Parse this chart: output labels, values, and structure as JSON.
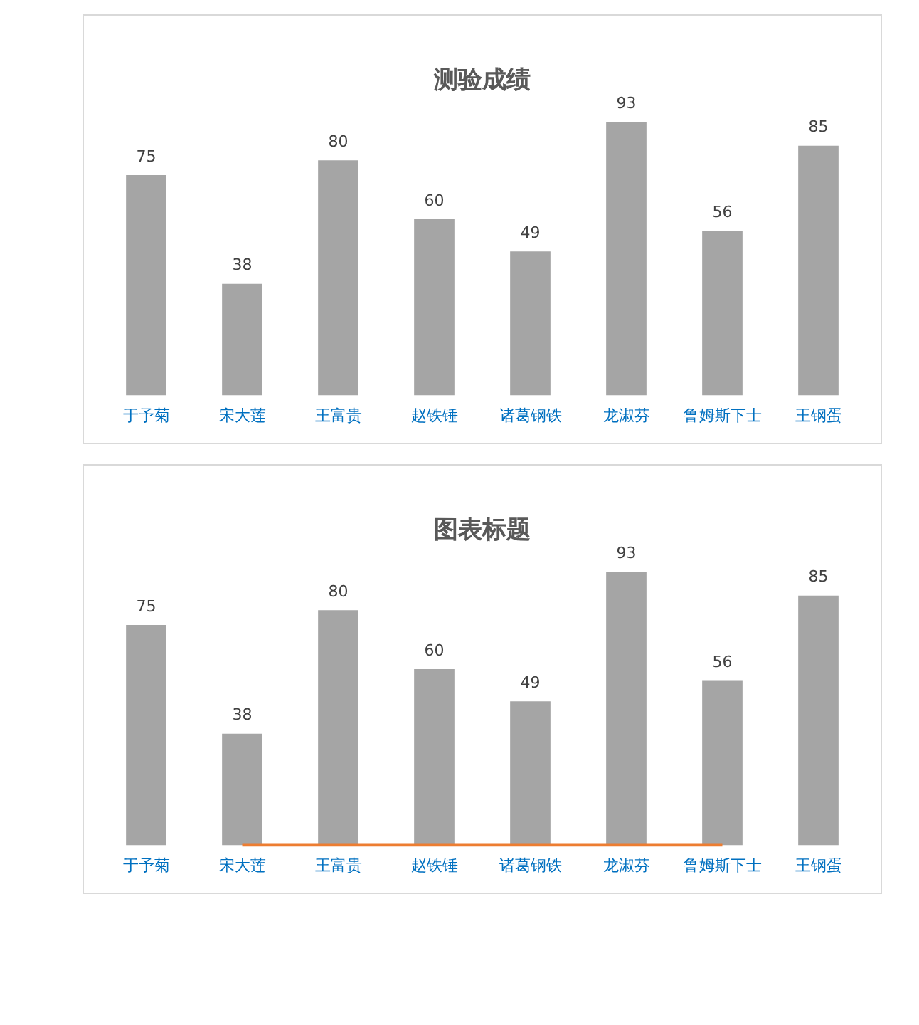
{
  "chart_data": [
    {
      "type": "bar",
      "title": "测验成绩",
      "categories": [
        "于予菊",
        "宋大莲",
        "王富贵",
        "赵铁锤",
        "诸葛钢铁",
        "龙淑芬",
        "鲁姆斯下士",
        "王钢蛋"
      ],
      "series": [
        {
          "color": "#a5a5a5",
          "values": [
            75,
            38,
            80,
            60,
            49,
            93,
            56,
            85
          ],
          "value_labels": [
            "75",
            "38",
            "80",
            "60",
            "49",
            "93",
            "56",
            "85"
          ]
        }
      ],
      "grid": false,
      "legend": false,
      "tick_labels": "x"
    },
    {
      "type": "bar",
      "title": "图表标题",
      "categories": [
        "于予菊",
        "宋大莲",
        "王富贵",
        "赵铁锤",
        "诸葛钢铁",
        "龙淑芬",
        "鲁姆斯下士",
        "王钢蛋"
      ],
      "series": [
        {
          "color": "#a5a5a5",
          "values": [
            75,
            38,
            80,
            60,
            49,
            93,
            56,
            85
          ],
          "value_labels": [
            "75",
            "38",
            "80",
            "60",
            "49",
            "93",
            "56",
            "85"
          ]
        },
        {
          "type": "line",
          "color": "#ed7d31",
          "values": [
            null,
            0,
            0,
            0,
            0,
            0,
            0,
            null
          ]
        }
      ],
      "grid": false,
      "legend": false,
      "tick_labels": "x"
    }
  ]
}
